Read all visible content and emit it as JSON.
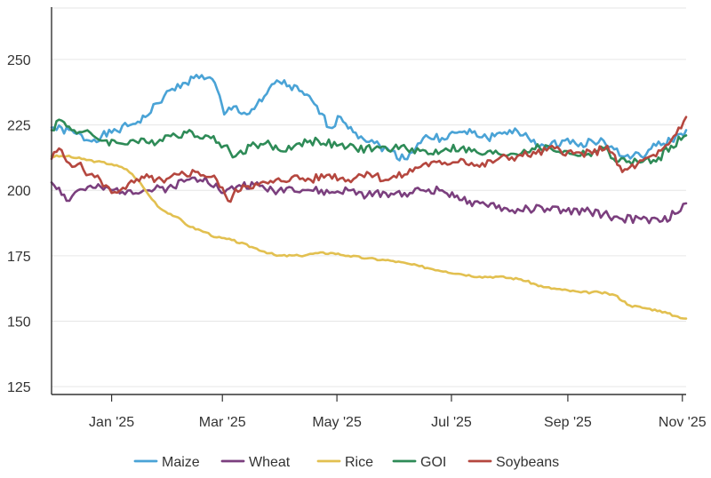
{
  "chart_data": {
    "type": "line",
    "title": "",
    "xlabel": "",
    "ylabel": "",
    "xlim": [
      -32,
      306
    ],
    "ylim": [
      122,
      270
    ],
    "x_unit": "days since 2025-01-01 (approx.)",
    "x_ticks": [
      {
        "value": 0,
        "label": "Jan '25"
      },
      {
        "value": 59,
        "label": "Mar '25"
      },
      {
        "value": 120,
        "label": "May '25"
      },
      {
        "value": 181,
        "label": "Jul '25"
      },
      {
        "value": 243,
        "label": "Sep '25"
      },
      {
        "value": 304,
        "label": "Nov '25"
      }
    ],
    "y_ticks": [
      125,
      150,
      175,
      200,
      225,
      250
    ],
    "legend_position": "bottom-center",
    "series": [
      {
        "name": "Maize",
        "color": "#4aa3d6",
        "x": [
          -32,
          -20,
          -12,
          0,
          10,
          18,
          28,
          38,
          48,
          55,
          60,
          65,
          72,
          80,
          88,
          100,
          108,
          116,
          122,
          130,
          140,
          148,
          156,
          166,
          176,
          184,
          192,
          200,
          212,
          222,
          232,
          240,
          250,
          262,
          272,
          282,
          290,
          298,
          306
        ],
        "values": [
          224,
          222,
          219,
          222,
          225,
          228,
          236,
          241,
          244,
          241,
          229,
          232,
          229,
          234,
          242,
          238,
          233,
          224,
          228,
          222,
          218,
          215,
          212,
          220,
          220,
          222,
          222,
          220,
          223,
          220,
          216,
          219,
          218,
          219,
          213,
          213,
          217,
          219,
          223
        ]
      },
      {
        "name": "Wheat",
        "color": "#7b3f7e",
        "x": [
          -32,
          -28,
          -24,
          -18,
          -10,
          0,
          10,
          20,
          30,
          40,
          50,
          60,
          68,
          76,
          86,
          96,
          106,
          116,
          126,
          136,
          146,
          156,
          166,
          176,
          184,
          192,
          202,
          212,
          222,
          232,
          242,
          252,
          262,
          272,
          282,
          292,
          300,
          306
        ],
        "values": [
          203,
          201,
          196,
          200,
          201,
          200,
          200,
          200,
          201,
          204,
          205,
          199,
          202,
          202,
          200,
          201,
          200,
          199,
          200,
          198,
          199,
          199,
          200,
          200,
          198,
          194,
          195,
          192,
          193,
          193,
          192,
          192,
          191,
          189,
          189,
          188,
          191,
          195
        ]
      },
      {
        "name": "Rice",
        "color": "#e2c050",
        "x": [
          -32,
          -24,
          -16,
          -8,
          0,
          8,
          14,
          20,
          26,
          34,
          42,
          50,
          56,
          64,
          76,
          88,
          100,
          110,
          118,
          126,
          136,
          150,
          164,
          178,
          186,
          196,
          206,
          218,
          230,
          240,
          250,
          260,
          268,
          276,
          284,
          292,
          300,
          306
        ],
        "values": [
          213,
          213,
          212,
          211,
          210,
          208,
          204,
          198,
          193,
          190,
          186,
          184,
          182,
          181,
          178,
          175,
          175,
          176,
          176,
          175,
          174,
          173,
          171,
          169,
          168,
          167,
          167,
          166,
          163,
          162,
          161,
          161,
          160,
          156,
          155,
          154,
          152,
          151
        ]
      },
      {
        "name": "GOI",
        "color": "#2e8b57",
        "x": [
          -32,
          -28,
          -20,
          -10,
          -4,
          4,
          10,
          20,
          30,
          40,
          50,
          60,
          66,
          74,
          82,
          90,
          100,
          110,
          120,
          130,
          140,
          150,
          160,
          170,
          178,
          186,
          196,
          206,
          214,
          224,
          234,
          244,
          254,
          262,
          270,
          280,
          290,
          298,
          306
        ],
        "values": [
          223,
          227,
          223,
          221,
          219,
          218,
          219,
          218,
          221,
          222,
          221,
          217,
          213,
          217,
          218,
          215,
          218,
          219,
          217,
          216,
          216,
          216,
          216,
          214,
          216,
          216,
          214,
          214,
          214,
          216,
          216,
          214,
          214,
          216,
          211,
          211,
          211,
          217,
          221
        ]
      },
      {
        "name": "Soybeans",
        "color": "#b5473f",
        "x": [
          -32,
          -28,
          -24,
          -18,
          -12,
          -6,
          0,
          6,
          12,
          20,
          28,
          36,
          46,
          56,
          62,
          70,
          78,
          86,
          96,
          106,
          116,
          126,
          136,
          146,
          156,
          166,
          176,
          186,
          196,
          206,
          216,
          226,
          236,
          246,
          256,
          264,
          272,
          280,
          290,
          298,
          306
        ],
        "values": [
          212,
          216,
          211,
          210,
          206,
          204,
          199,
          201,
          203,
          205,
          203,
          206,
          207,
          204,
          196,
          202,
          202,
          203,
          205,
          204,
          206,
          204,
          207,
          204,
          206,
          210,
          210,
          212,
          209,
          212,
          213,
          214,
          216,
          214,
          214,
          217,
          207,
          210,
          213,
          219,
          228
        ]
      }
    ]
  }
}
